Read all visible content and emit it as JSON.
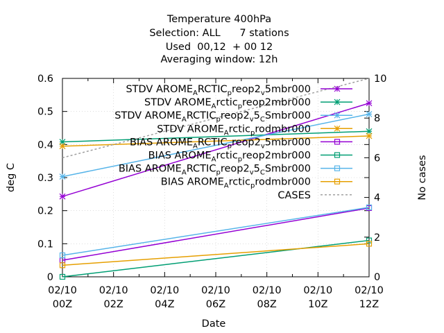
{
  "chart_data": {
    "type": "line",
    "title_lines": [
      "Temperature 400hPa",
      "Selection: ALL      7 stations",
      "Used  00,12  + 00 12",
      "Averaging window: 12h"
    ],
    "xlabel": "Date",
    "ylabel": "deg C",
    "y2label": "No cases",
    "x_ticks": [
      {
        "x": 0,
        "line1": "02/10",
        "line2": "00Z"
      },
      {
        "x": 2,
        "line1": "02/10",
        "line2": "02Z"
      },
      {
        "x": 4,
        "line1": "02/10",
        "line2": "04Z"
      },
      {
        "x": 6,
        "line1": "02/10",
        "line2": "06Z"
      },
      {
        "x": 8,
        "line1": "02/10",
        "line2": "08Z"
      },
      {
        "x": 10,
        "line1": "02/10",
        "line2": "10Z"
      },
      {
        "x": 12,
        "line1": "02/10",
        "line2": "12Z"
      }
    ],
    "xlim": [
      0,
      12
    ],
    "ylim": [
      0,
      0.6
    ],
    "y_ticks": [
      "0",
      "0.1",
      "0.2",
      "0.3",
      "0.4",
      "0.5",
      "0.6"
    ],
    "y2lim": [
      0,
      10
    ],
    "y2_ticks": [
      "0",
      "2",
      "4",
      "6",
      "8",
      "10"
    ],
    "legend_position": "top-right",
    "series": [
      {
        "name": "STDV AROME_ARCTIC_preop2_v5mbr000",
        "name_parts": [
          [
            "STDV AROME",
            ""
          ],
          [
            "A",
            "sub"
          ],
          [
            "RCTIC",
            ""
          ],
          [
            "p",
            "sub"
          ],
          [
            "reop2",
            ""
          ],
          [
            "v",
            "sub"
          ],
          [
            "5mbr000",
            ""
          ]
        ],
        "color": "#9400d3",
        "marker": "x-star",
        "axis": "y",
        "x": [
          0,
          12
        ],
        "values": [
          0.243,
          0.525
        ]
      },
      {
        "name": "STDV AROME_Arctic_preop2mbr000",
        "name_parts": [
          [
            "STDV AROME",
            ""
          ],
          [
            "A",
            "sub"
          ],
          [
            "rctic",
            ""
          ],
          [
            "p",
            "sub"
          ],
          [
            "reop2mbr000",
            ""
          ]
        ],
        "color": "#009e73",
        "marker": "x-star",
        "axis": "y",
        "x": [
          0,
          12
        ],
        "values": [
          0.408,
          0.44
        ]
      },
      {
        "name": "STDV AROME_ARCTIC_preop2_v5_CSmbr000",
        "name_parts": [
          [
            "STDV AROME",
            ""
          ],
          [
            "A",
            "sub"
          ],
          [
            "RCTIC",
            ""
          ],
          [
            "p",
            "sub"
          ],
          [
            "reop2",
            ""
          ],
          [
            "v",
            "sub"
          ],
          [
            "5",
            ""
          ],
          [
            "C",
            "sub"
          ],
          [
            "Smbr000",
            ""
          ]
        ],
        "color": "#56b4e9",
        "marker": "x-star",
        "axis": "y",
        "x": [
          0,
          12
        ],
        "values": [
          0.303,
          0.492
        ]
      },
      {
        "name": "STDV AROME_Arctic_prodmbr000",
        "name_parts": [
          [
            "STDV AROME",
            ""
          ],
          [
            "A",
            "sub"
          ],
          [
            "rctic",
            ""
          ],
          [
            "p",
            "sub"
          ],
          [
            "rodmbr000",
            ""
          ]
        ],
        "color": "#e69f00",
        "marker": "x-star",
        "axis": "y",
        "x": [
          0,
          12
        ],
        "values": [
          0.395,
          0.426
        ]
      },
      {
        "name": "BIAS AROME_ARCTIC_preop2_v5mbr000",
        "name_parts": [
          [
            "BIAS AROME",
            ""
          ],
          [
            "A",
            "sub"
          ],
          [
            "RCTIC",
            ""
          ],
          [
            "p",
            "sub"
          ],
          [
            "reop2",
            ""
          ],
          [
            "v",
            "sub"
          ],
          [
            "5mbr000",
            ""
          ]
        ],
        "color": "#9400d3",
        "marker": "square",
        "axis": "y",
        "x": [
          0,
          12
        ],
        "values": [
          0.05,
          0.208
        ]
      },
      {
        "name": "BIAS AROME_Arctic_preop2mbr000",
        "name_parts": [
          [
            "BIAS AROME",
            ""
          ],
          [
            "A",
            "sub"
          ],
          [
            "rctic",
            ""
          ],
          [
            "p",
            "sub"
          ],
          [
            "reop2mbr000",
            ""
          ]
        ],
        "color": "#009e73",
        "marker": "square",
        "axis": "y",
        "x": [
          0,
          12
        ],
        "values": [
          0.0,
          0.11
        ]
      },
      {
        "name": "BIAS AROME_ARCTIC_preop2_v5_CSmbr000",
        "name_parts": [
          [
            "BIAS AROME",
            ""
          ],
          [
            "A",
            "sub"
          ],
          [
            "RCTIC",
            ""
          ],
          [
            "p",
            "sub"
          ],
          [
            "reop2",
            ""
          ],
          [
            "v",
            "sub"
          ],
          [
            "5",
            ""
          ],
          [
            "C",
            "sub"
          ],
          [
            "Smbr000",
            ""
          ]
        ],
        "color": "#56b4e9",
        "marker": "square",
        "axis": "y",
        "x": [
          0,
          12
        ],
        "values": [
          0.065,
          0.21
        ]
      },
      {
        "name": "BIAS AROME_Arctic_prodmbr000",
        "name_parts": [
          [
            "BIAS AROME",
            ""
          ],
          [
            "A",
            "sub"
          ],
          [
            "rctic",
            ""
          ],
          [
            "p",
            "sub"
          ],
          [
            "rodmbr000",
            ""
          ]
        ],
        "color": "#e69f00",
        "marker": "square",
        "axis": "y",
        "x": [
          0,
          12
        ],
        "values": [
          0.035,
          0.1
        ]
      },
      {
        "name": "CASES",
        "name_parts": [
          [
            "CASES",
            ""
          ]
        ],
        "color": "#a0a0a0",
        "marker": "none",
        "dash": "3,3",
        "axis": "y2",
        "x": [
          0,
          12
        ],
        "values": [
          6,
          10
        ]
      }
    ]
  }
}
